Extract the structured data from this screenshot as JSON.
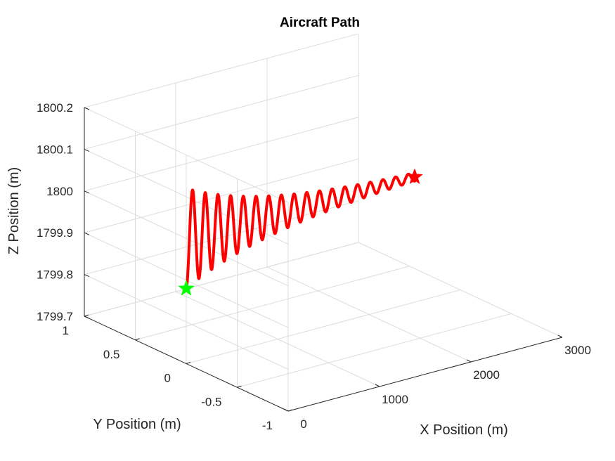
{
  "chart_data": {
    "type": "line3d",
    "title": "Aircraft Path",
    "xlabel": "X Position (m)",
    "ylabel": "Y Position (m)",
    "zlabel": "Z Position (m)",
    "xlim": [
      0,
      3000
    ],
    "ylim": [
      -1,
      1
    ],
    "zlim": [
      1799.7,
      1800.2
    ],
    "xticks": [
      "0",
      "1000",
      "2000",
      "3000"
    ],
    "yticks": [
      "-1",
      "-0.5",
      "0",
      "0.5",
      "1"
    ],
    "zticks": [
      "1799.7",
      "1799.8",
      "1799.9",
      "1800",
      "1800.1",
      "1800.2"
    ],
    "grid": true,
    "series": [
      {
        "color": "#ff0000",
        "path": {
          "x_start": 0,
          "x_end": 2500,
          "y": 0,
          "z_mean": 1800.0,
          "z_start": 1799.88,
          "amplitude_start": 0.12,
          "amplitude_end": 0.01,
          "cycles": 18
        },
        "start_marker": {
          "x": 0,
          "y": 0,
          "z": 1799.88,
          "shape": "star",
          "color": "#00ff00"
        },
        "end_marker": {
          "x": 2500,
          "y": 0,
          "z": 1800.0,
          "shape": "star",
          "color": "#ff0000"
        }
      }
    ]
  }
}
